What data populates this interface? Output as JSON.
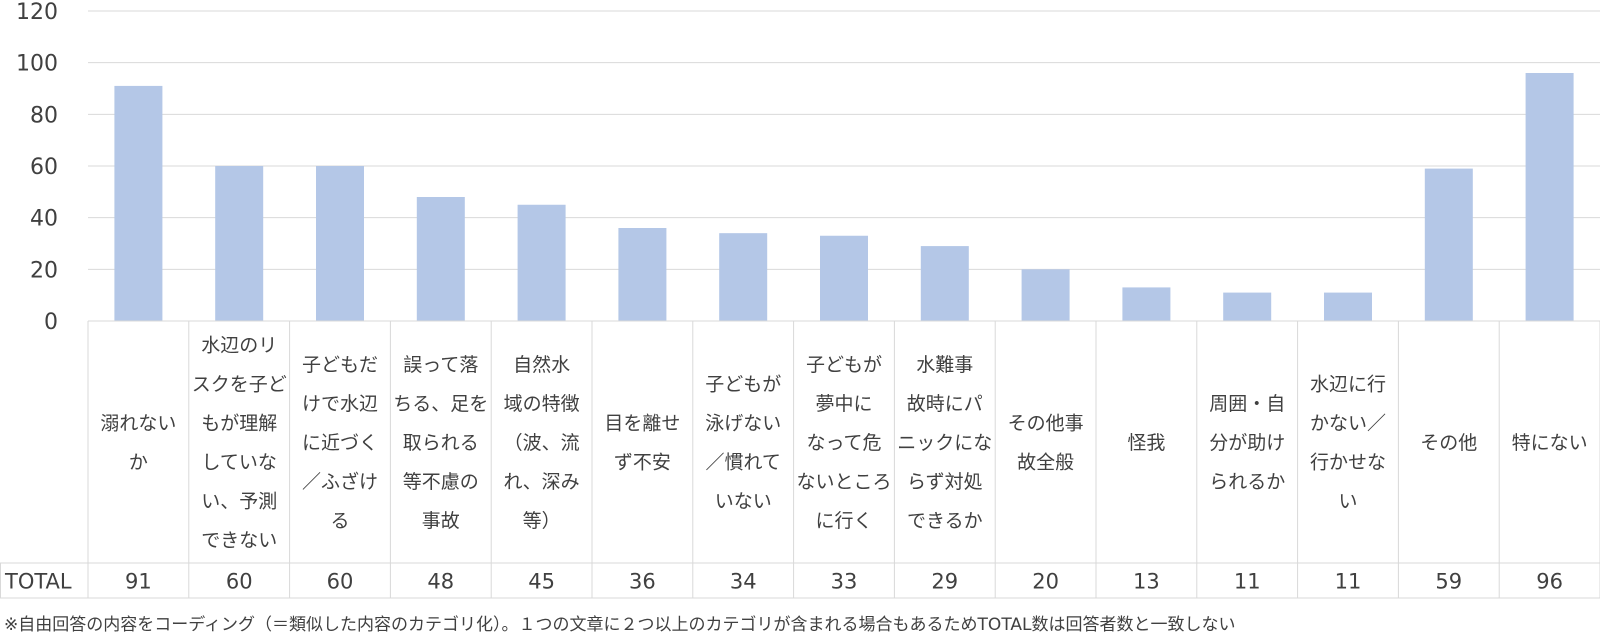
{
  "chart_data": {
    "type": "bar",
    "categories": [
      "溺れないか",
      "水辺のリスクを子どもが理解していない、予測できない",
      "子どもだけで水辺に近づく／ふざける",
      "誤って落ちる、足を取られる等不慮の事故",
      "自然水域の特徴（波、流れ、深み等）",
      "目を離せず不安",
      "子どもが泳げない／慣れていない",
      "子どもが夢中になって危ないところに行く",
      "水難事故時にパニックにならず対処できるか",
      "その他事故全般",
      "怪我",
      "周囲・自分が助けられるか",
      "水辺に行かない／行かせない",
      "その他",
      "特にない"
    ],
    "category_lines": [
      [
        "溺れない",
        "か"
      ],
      [
        "水辺のリ",
        "スクを子ど",
        "もが理解",
        "していな",
        "い、予測",
        "できない"
      ],
      [
        "子どもだ",
        "けで水辺",
        "に近づく",
        "／ふざけ",
        "る"
      ],
      [
        "誤って落",
        "ちる、足を",
        "取られる",
        "等不慮の",
        "事故"
      ],
      [
        "自然水",
        "域の特徴",
        "（波、流",
        "れ、深み",
        "等）"
      ],
      [
        "目を離せ",
        "ず不安"
      ],
      [
        "子どもが",
        "泳げない",
        "／慣れて",
        "いない"
      ],
      [
        "子どもが",
        "夢中に",
        "なって危",
        "ないところ",
        "に行く"
      ],
      [
        "水難事",
        "故時にパ",
        "ニックにな",
        "らず対処",
        "できるか"
      ],
      [
        "その他事",
        "故全般"
      ],
      [
        "怪我"
      ],
      [
        "周囲・自",
        "分が助け",
        "られるか"
      ],
      [
        "水辺に行",
        "かない／",
        "行かせな",
        "い"
      ],
      [
        "その他"
      ],
      [
        "特にない"
      ]
    ],
    "series": [
      {
        "name": "TOTAL",
        "values": [
          91,
          60,
          60,
          48,
          45,
          36,
          34,
          33,
          29,
          20,
          13,
          11,
          11,
          59,
          96
        ]
      }
    ],
    "ylim": [
      0,
      120
    ],
    "yticks": [
      0,
      20,
      40,
      60,
      80,
      100,
      120
    ],
    "grid": true,
    "bar_color": "#b4c7e7",
    "table_row_label": "TOTAL"
  },
  "footnote": "※自由回答の内容をコーディング（＝類似した内容のカテゴリ化）。１つの文章に２つ以上のカテゴリが含まれる場合もあるためTOTAL数は回答者数と一致しない"
}
